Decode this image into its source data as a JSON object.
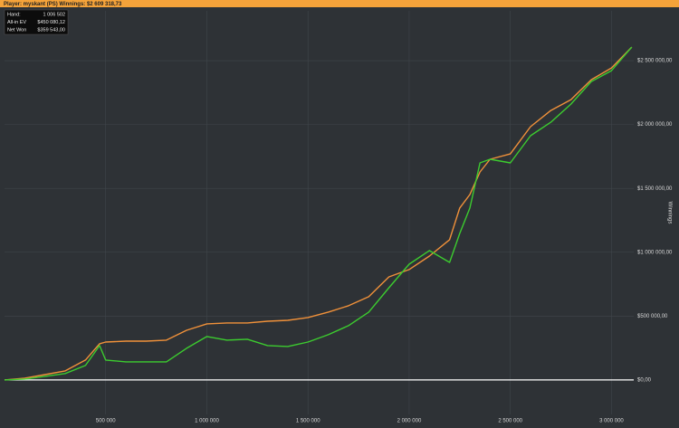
{
  "header": {
    "title": "Player: myskant (PS)  Winnings: $2 609 318,73"
  },
  "info_box": [
    {
      "label": "Hand:",
      "value": "1 006 502"
    },
    {
      "label": "All-in EV",
      "value": "$450 080,12"
    },
    {
      "label": "Net Won",
      "value": "$359 543,00"
    }
  ],
  "chart_data": {
    "type": "line",
    "y_label": "Winnings",
    "x": [
      0,
      100000,
      200000,
      300000,
      400000,
      470000,
      500000,
      600000,
      700000,
      800000,
      900000,
      1000000,
      1100000,
      1200000,
      1300000,
      1400000,
      1500000,
      1600000,
      1700000,
      1800000,
      1900000,
      2000000,
      2100000,
      2200000,
      2250000,
      2300000,
      2350000,
      2400000,
      2500000,
      2600000,
      2700000,
      2800000,
      2900000,
      3000000,
      3100000
    ],
    "series": [
      {
        "name": "All-in EV",
        "color": "#f0913a",
        "values": [
          0,
          14000,
          42000,
          71000,
          156000,
          283000,
          297000,
          304000,
          304000,
          312000,
          389000,
          439000,
          446000,
          446000,
          460000,
          467000,
          489000,
          531000,
          581000,
          652000,
          807000,
          864000,
          970000,
          1098000,
          1346000,
          1452000,
          1629000,
          1728000,
          1770000,
          1983000,
          2110000,
          2195000,
          2351000,
          2443000,
          2606000
        ]
      },
      {
        "name": "Net Won",
        "color": "#3ccc2f",
        "values": [
          0,
          7000,
          28000,
          50000,
          113000,
          269000,
          156000,
          142000,
          142000,
          142000,
          248000,
          340000,
          312000,
          319000,
          269000,
          262000,
          297000,
          354000,
          425000,
          531000,
          722000,
          906000,
          1013000,
          920000,
          1147000,
          1346000,
          1700000,
          1728000,
          1700000,
          1912000,
          2018000,
          2160000,
          2337000,
          2422000,
          2606000
        ]
      }
    ],
    "xlim": [
      0,
      3110000
    ],
    "ylim": [
      -270000,
      2890000
    ],
    "xticks": [
      {
        "value": 500000,
        "label": "500 000"
      },
      {
        "value": 1000000,
        "label": "1 000 000"
      },
      {
        "value": 1500000,
        "label": "1 500 000"
      },
      {
        "value": 2000000,
        "label": "2 000 000"
      },
      {
        "value": 2500000,
        "label": "2 500 000"
      },
      {
        "value": 3000000,
        "label": "3 000 000"
      }
    ],
    "yticks": [
      {
        "value": 0,
        "label": "$0,00"
      },
      {
        "value": 500000,
        "label": "$500 000,00"
      },
      {
        "value": 1000000,
        "label": "$1 000 000,00"
      },
      {
        "value": 1500000,
        "label": "$1 500 000,00"
      },
      {
        "value": 2000000,
        "label": "$2 000 000,00"
      },
      {
        "value": 2500000,
        "label": "$2 500 000,00"
      }
    ],
    "grid": true
  }
}
